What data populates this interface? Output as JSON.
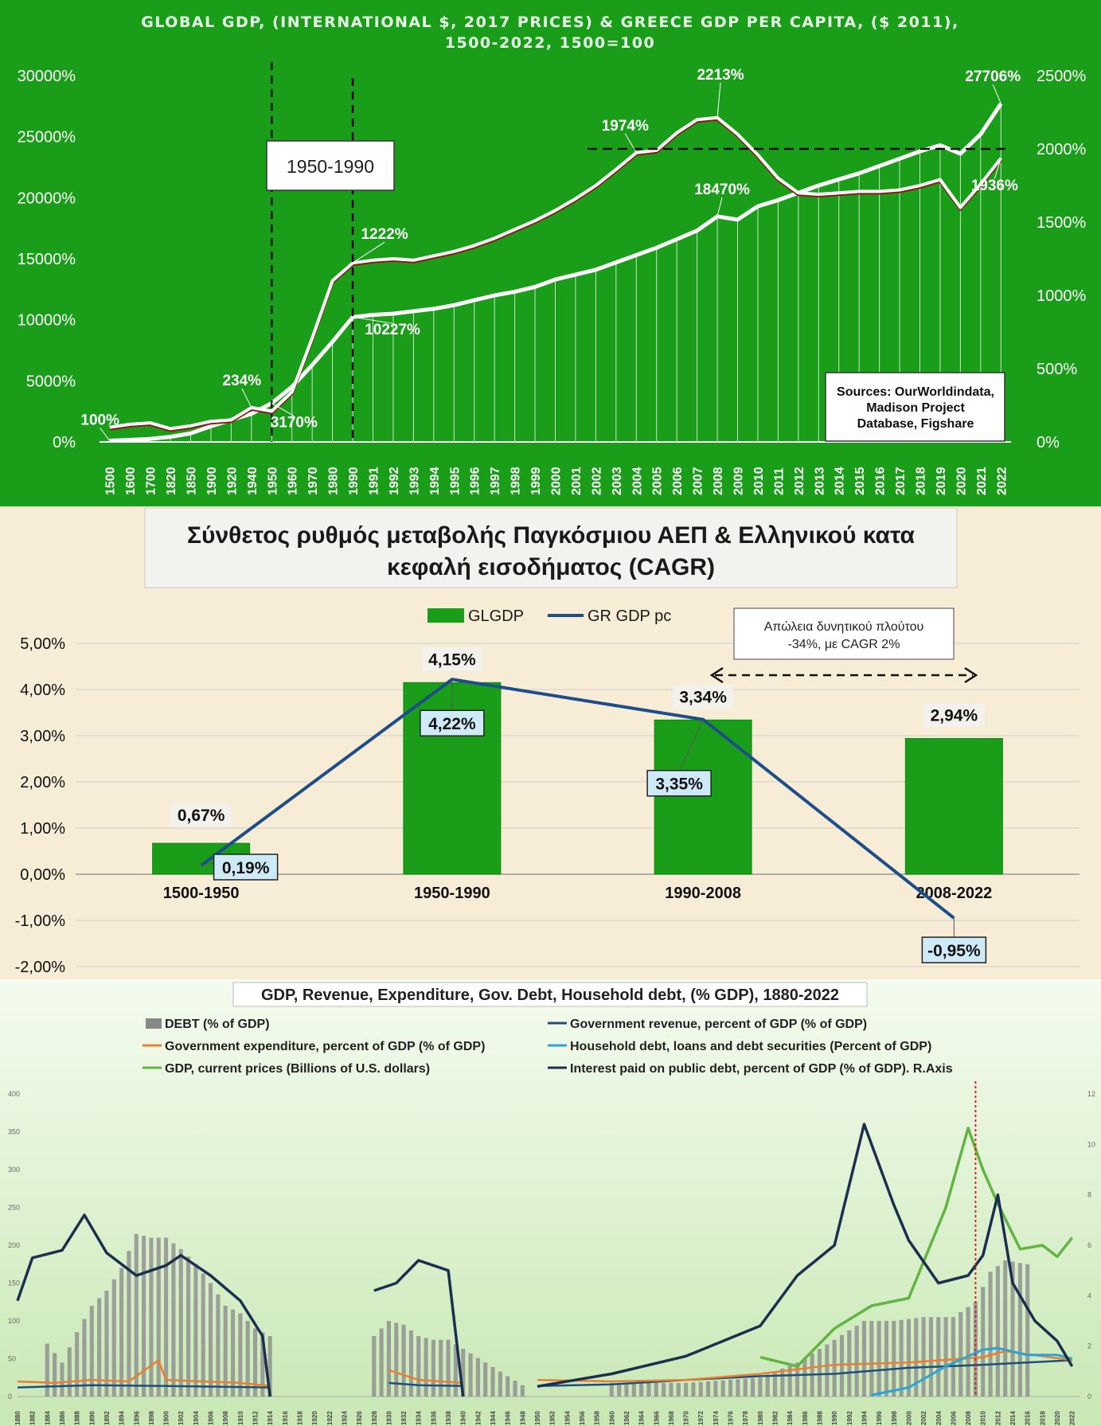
{
  "chart_data": [
    {
      "type": "line",
      "title_line1": "GLOBAL GDP, (INTERNATIONAL $, 2017 PRICES) & GREECE GDP PER CAPITA, ($ 2011),",
      "title_line2": "1500-2022, 1500=100",
      "x_categories": [
        "1500",
        "1600",
        "1700",
        "1820",
        "1850",
        "1900",
        "1920",
        "1940",
        "1950",
        "1960",
        "1970",
        "1980",
        "1990",
        "1991",
        "1992",
        "1993",
        "1994",
        "1995",
        "1996",
        "1997",
        "1998",
        "1999",
        "2000",
        "2001",
        "2002",
        "2003",
        "2004",
        "2005",
        "2006",
        "2007",
        "2008",
        "2009",
        "2010",
        "2011",
        "2012",
        "2013",
        "2014",
        "2015",
        "2016",
        "2017",
        "2018",
        "2019",
        "2020",
        "2021",
        "2022"
      ],
      "left_ticks": [
        "30000%",
        "25000%",
        "20000%",
        "15000%",
        "10000%",
        "5000%",
        "0%"
      ],
      "right_ticks": [
        "2500%",
        "2000%",
        "1500%",
        "1000%",
        "500%",
        "0%"
      ],
      "ylim_left": [
        0,
        30000
      ],
      "ylim_right": [
        0,
        2500
      ],
      "series": [
        {
          "name": "Global GDP (left axis)",
          "values": [
            100,
            160,
            250,
            420,
            700,
            1280,
            1800,
            2300,
            3170,
            4500,
            6300,
            8200,
            10227,
            10400,
            10500,
            10700,
            10900,
            11200,
            11600,
            12000,
            12300,
            12700,
            13300,
            13700,
            14100,
            14700,
            15300,
            15900,
            16600,
            17300,
            18470,
            18200,
            19300,
            19800,
            20400,
            21000,
            21500,
            22000,
            22600,
            23200,
            23800,
            24300,
            23600,
            25200,
            27706
          ]
        },
        {
          "name": "Greece GDP per capita (right axis)",
          "values": [
            100,
            120,
            130,
            90,
            110,
            140,
            150,
            234,
            210,
            340,
            710,
            1100,
            1222,
            1240,
            1250,
            1240,
            1270,
            1300,
            1340,
            1390,
            1450,
            1510,
            1580,
            1660,
            1750,
            1860,
            1974,
            1990,
            2110,
            2200,
            2213,
            2100,
            1960,
            1800,
            1700,
            1690,
            1700,
            1710,
            1710,
            1720,
            1750,
            1790,
            1600,
            1760,
            1936
          ]
        }
      ],
      "value_labels": [
        "100%",
        "234%",
        "3170%",
        "1222%",
        "10227%",
        "1974%",
        "2213%",
        "18470%",
        "27706%",
        "1936%"
      ],
      "period_box": "1950-1990",
      "sources_box": [
        "Sources: OurWorldindata,",
        "Madison Project",
        "Database, Figshare"
      ]
    },
    {
      "type": "bar",
      "title_line1": "Σύνθετος ρυθμός μεταβολής Παγκόσμιου ΑΕΠ & Ελληνικού κατα",
      "title_line2": "κεφαλή εισοδήματος (CAGR)",
      "categories": [
        "1500-1950",
        "1950-1990",
        "1990-2008",
        "2008-2022"
      ],
      "series": [
        {
          "name": "GLGDP",
          "values": [
            0.67,
            4.15,
            3.34,
            2.94
          ],
          "labels": [
            "0,67%",
            "4,15%",
            "3,34%",
            "2,94%"
          ]
        },
        {
          "name": "GR GDP pc",
          "values": [
            0.19,
            4.22,
            3.35,
            -0.95
          ],
          "labels": [
            "0,19%",
            "4,22%",
            "3,35%",
            "-0,95%"
          ]
        }
      ],
      "y_ticks": [
        "5,00%",
        "4,00%",
        "3,00%",
        "2,00%",
        "1,00%",
        "0,00%",
        "-1,00%",
        "-2,00%"
      ],
      "ylim": [
        -2,
        5
      ],
      "annotation": [
        "Απώλεια δυνητικού πλούτου",
        "-34%, με CAGR 2%"
      ]
    },
    {
      "type": "line",
      "title": "GDP, Revenue, Expenditure, Gov. Debt, Household debt, (% GDP), 1880-2022",
      "legend": [
        "DEBT (% of GDP)",
        "Government revenue, percent of GDP (% of GDP)",
        "Government expenditure, percent of GDP (% of GDP)",
        "Household debt, loans and debt securities (Percent of GDP)",
        "GDP, current prices (Billions of U.S. dollars)",
        "Interest paid on public debt, percent of GDP (% of GDP). R.Axis"
      ],
      "left_ticks": [
        "400",
        "350",
        "300",
        "250",
        "200",
        "150",
        "100",
        "50",
        "0"
      ],
      "right_ticks": [
        "12",
        "10",
        "8",
        "6",
        "4",
        "2",
        "0"
      ],
      "ylim_left": [
        0,
        400
      ],
      "ylim_right": [
        0,
        12
      ],
      "x_ticks": [
        "1880",
        "1882",
        "1884",
        "1886",
        "1888",
        "1890",
        "1892",
        "1894",
        "1896",
        "1898",
        "1900",
        "1902",
        "1904",
        "1906",
        "1908",
        "1910",
        "1912",
        "1914",
        "1916",
        "1918",
        "1920",
        "1922",
        "1924",
        "1926",
        "1928",
        "1930",
        "1932",
        "1934",
        "1936",
        "1938",
        "1940",
        "1942",
        "1944",
        "1946",
        "1948",
        "1950",
        "1952",
        "1954",
        "1956",
        "1958",
        "1960",
        "1962",
        "1964",
        "1966",
        "1968",
        "1970",
        "1972",
        "1974",
        "1976",
        "1978",
        "1980",
        "1982",
        "1984",
        "1986",
        "1988",
        "1990",
        "1992",
        "1994",
        "1996",
        "1998",
        "2000",
        "2002",
        "2004",
        "2006",
        "2008",
        "2010",
        "2012",
        "2014",
        "2016",
        "2018",
        "2020",
        "2022"
      ],
      "debt_series": {
        "years": [
          1884,
          1886,
          1888,
          1890,
          1892,
          1894,
          1896,
          1898,
          1900,
          1902,
          1904,
          1906,
          1908,
          1910,
          1912,
          1914,
          1928,
          1930,
          1932,
          1934,
          1936,
          1938,
          1948,
          1960,
          1970,
          1980,
          1985,
          1990,
          1994,
          1998,
          2002,
          2006,
          2009,
          2011,
          2013,
          2016
        ],
        "values": [
          70,
          45,
          85,
          120,
          140,
          170,
          215,
          210,
          210,
          195,
          175,
          150,
          120,
          110,
          90,
          80,
          80,
          100,
          95,
          80,
          75,
          75,
          15,
          18,
          18,
          25,
          45,
          75,
          100,
          100,
          105,
          105,
          125,
          165,
          180,
          175
        ]
      },
      "revenue_series": {
        "years": [
          1880,
          1890,
          1900,
          1914,
          1916,
          1926,
          1930,
          1934,
          1940,
          1942,
          1948,
          1950,
          1960,
          1970,
          1980,
          1990,
          2000,
          2010,
          2022
        ],
        "values": [
          12,
          15,
          14,
          12,
          null,
          null,
          18,
          15,
          14,
          null,
          null,
          14,
          16,
          22,
          27,
          30,
          38,
          42,
          48
        ]
      },
      "expenditure_series": {
        "years": [
          1880,
          1885,
          1890,
          1895,
          1899,
          1900,
          1905,
          1910,
          1914,
          1916,
          1926,
          1930,
          1934,
          1940,
          1942,
          1948,
          1950,
          1960,
          1970,
          1980,
          1990,
          2000,
          2010,
          2013,
          2022
        ],
        "values": [
          20,
          18,
          22,
          20,
          48,
          22,
          20,
          18,
          14,
          null,
          null,
          35,
          22,
          18,
          null,
          null,
          22,
          20,
          22,
          30,
          42,
          45,
          52,
          60,
          48
        ]
      },
      "household_series": {
        "years": [
          1995,
          2000,
          2005,
          2010,
          2012,
          2016,
          2020,
          2022
        ],
        "values": [
          2,
          12,
          40,
          62,
          64,
          55,
          55,
          50
        ]
      },
      "gdp_series": {
        "years": [
          1980,
          1985,
          1990,
          1995,
          2000,
          2005,
          2008,
          2010,
          2012,
          2015,
          2018,
          2020,
          2022
        ],
        "values": [
          52,
          40,
          90,
          120,
          130,
          250,
          355,
          300,
          255,
          195,
          200,
          185,
          210
        ]
      },
      "interest_series": {
        "years": [
          1880,
          1882,
          1886,
          1889,
          1892,
          1896,
          1900,
          1902,
          1906,
          1910,
          1913,
          1914,
          1916,
          1926,
          1928,
          1931,
          1934,
          1938,
          1940,
          1942,
          1950,
          1960,
          1970,
          1980,
          1985,
          1990,
          1994,
          1998,
          2000,
          2004,
          2008,
          2010,
          2012,
          2014,
          2017,
          2020,
          2022
        ],
        "values": [
          3.8,
          5.5,
          5.8,
          7.2,
          5.7,
          4.8,
          5.2,
          5.6,
          4.8,
          3.8,
          2.4,
          0,
          null,
          null,
          4.2,
          4.5,
          5.4,
          5.0,
          0,
          null,
          0.4,
          0.9,
          1.6,
          2.8,
          4.8,
          6.0,
          10.8,
          7.6,
          6.2,
          4.5,
          4.8,
          5.6,
          8.0,
          4.5,
          3.0,
          2.2,
          1.2
        ]
      },
      "marker_year": 2009
    }
  ]
}
